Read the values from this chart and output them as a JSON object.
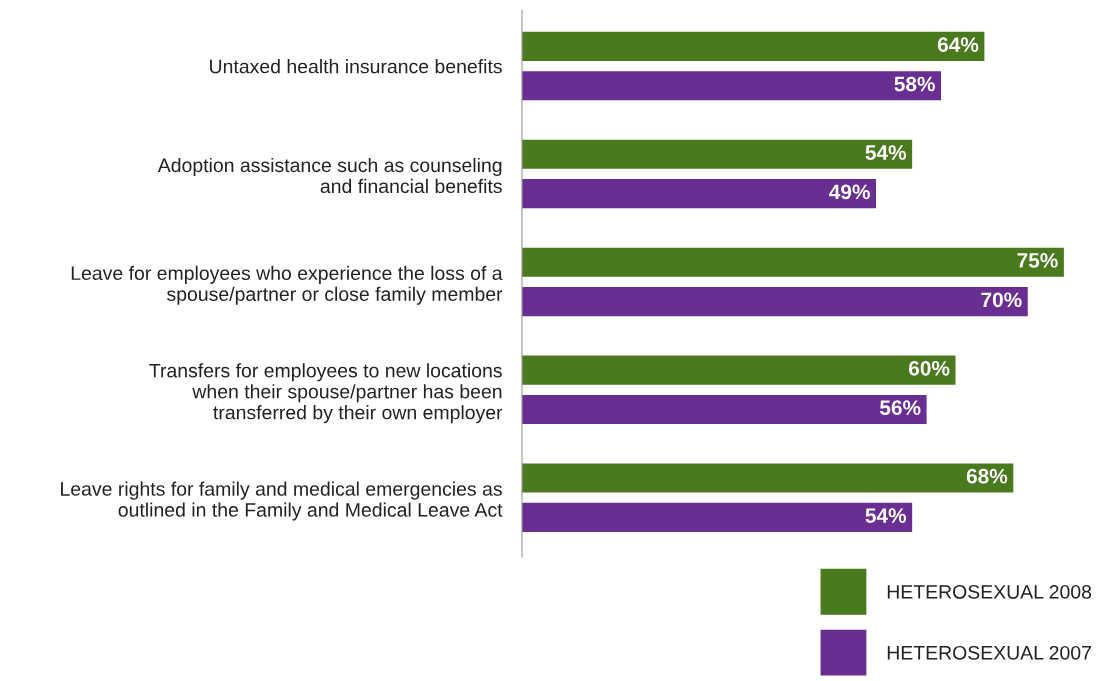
{
  "chart_data": {
    "type": "bar",
    "orientation": "horizontal",
    "legend": "bottom right",
    "categories": [
      "Untaxed health insurance benefits",
      "Adoption assistance such as counseling\nand financial benefits",
      "Leave for employees who experience the loss of a\nspouse/partner or close family member",
      "Transfers for employees to new locations\nwhen their spouse/partner has been\ntransferred by their own employer",
      "Leave rights for family and medical emergencies as\noutlined in the Family and Medical Leave Act"
    ],
    "series": [
      {
        "name": "HETEROSEXUAL 2008",
        "color": "#4a7a1e",
        "values": [
          64,
          54,
          75,
          60,
          68
        ],
        "value_labels": [
          "64%",
          "54%",
          "75%",
          "60%",
          "68%"
        ]
      },
      {
        "name": "HETEROSEXUAL 2007",
        "color": "#6a2d91",
        "values": [
          58,
          49,
          70,
          56,
          54
        ],
        "value_labels": [
          "58%",
          "49%",
          "70%",
          "56%",
          "54%"
        ]
      }
    ]
  }
}
